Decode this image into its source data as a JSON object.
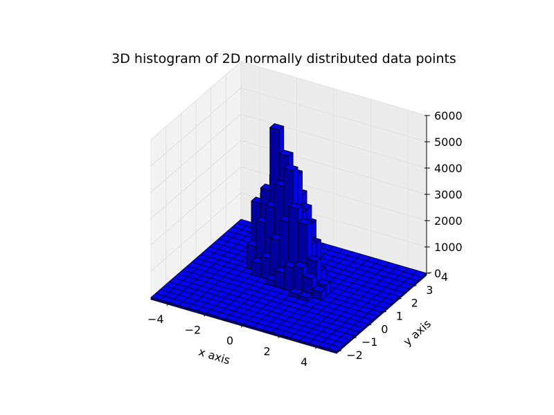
{
  "chart_data": {
    "type": "bar3d",
    "title": "3D histogram of 2D normally distributed data points",
    "xlabel": "x axis",
    "ylabel": "y axis",
    "zlabel": "",
    "xlim": [
      -5,
      5
    ],
    "ylim": [
      -2,
      4
    ],
    "zlim": [
      0,
      6000
    ],
    "x_ticks": [
      "−4",
      "−2",
      "0",
      "2",
      "4"
    ],
    "y_ticks": [
      "−2",
      "−1",
      "0",
      "1",
      "2",
      "3",
      "4"
    ],
    "z_ticks": [
      "0",
      "1000",
      "2000",
      "3000",
      "4000",
      "5000",
      "6000"
    ],
    "grid": true,
    "bar_color": "#0000ff",
    "x_edges": [
      -5,
      -4.5,
      -4,
      -3.5,
      -3,
      -2.5,
      -2,
      -1.5,
      -1,
      -0.5,
      0,
      0.5,
      1,
      1.5,
      2,
      2.5,
      3,
      3.5,
      4,
      4.5,
      5
    ],
    "y_edges": [
      -2,
      -1.7,
      -1.4,
      -1.1,
      -0.8,
      -0.5,
      -0.2,
      0.1,
      0.4,
      0.7,
      1,
      1.3,
      1.6,
      1.9,
      2.2,
      2.5,
      2.8,
      3.1,
      3.4,
      3.7,
      4
    ],
    "bars": [
      {
        "x": -2.5,
        "y": 2.2,
        "z": 2400
      },
      {
        "x": -2.0,
        "y": 2.2,
        "z": 3200
      },
      {
        "x": -1.5,
        "y": 2.2,
        "z": 3500
      },
      {
        "x": -1.0,
        "y": 2.2,
        "z": 3000
      },
      {
        "x": -0.5,
        "y": 2.2,
        "z": 1500
      },
      {
        "x": -2.5,
        "y": 1.9,
        "z": 1000
      },
      {
        "x": -2.0,
        "y": 1.9,
        "z": 2600
      },
      {
        "x": -1.5,
        "y": 1.9,
        "z": 3200
      },
      {
        "x": -1.0,
        "y": 1.9,
        "z": 3800
      },
      {
        "x": -0.5,
        "y": 1.9,
        "z": 3000
      },
      {
        "x": 0.0,
        "y": 1.9,
        "z": 2000
      },
      {
        "x": -2.5,
        "y": 1.6,
        "z": 2400
      },
      {
        "x": -2.0,
        "y": 1.6,
        "z": 3000
      },
      {
        "x": -1.5,
        "y": 1.6,
        "z": 5400
      },
      {
        "x": -1.0,
        "y": 1.6,
        "z": 4500
      },
      {
        "x": -0.5,
        "y": 1.6,
        "z": 3900
      },
      {
        "x": 0.0,
        "y": 1.6,
        "z": 2700
      },
      {
        "x": 0.5,
        "y": 1.6,
        "z": 1500
      },
      {
        "x": -2.5,
        "y": 1.3,
        "z": 900
      },
      {
        "x": -2.0,
        "y": 1.3,
        "z": 1900
      },
      {
        "x": -1.5,
        "y": 1.3,
        "z": 2600
      },
      {
        "x": -1.0,
        "y": 1.3,
        "z": 3500
      },
      {
        "x": -0.5,
        "y": 1.3,
        "z": 4200
      },
      {
        "x": 0.0,
        "y": 1.3,
        "z": 2700
      },
      {
        "x": 0.5,
        "y": 1.3,
        "z": 1600
      },
      {
        "x": 1.0,
        "y": 1.3,
        "z": 700
      },
      {
        "x": -2.0,
        "y": 1.0,
        "z": 500
      },
      {
        "x": -1.5,
        "y": 1.0,
        "z": 800
      },
      {
        "x": -1.0,
        "y": 1.0,
        "z": 1600
      },
      {
        "x": -0.5,
        "y": 1.0,
        "z": 2400
      },
      {
        "x": 0.0,
        "y": 1.0,
        "z": 3000
      },
      {
        "x": 0.5,
        "y": 1.0,
        "z": 2500
      },
      {
        "x": 1.0,
        "y": 1.0,
        "z": 1200
      },
      {
        "x": 1.5,
        "y": 1.0,
        "z": 400
      },
      {
        "x": -1.0,
        "y": 0.7,
        "z": 200
      },
      {
        "x": -0.5,
        "y": 0.7,
        "z": 600
      },
      {
        "x": 0.0,
        "y": 0.7,
        "z": 900
      },
      {
        "x": 0.5,
        "y": 0.7,
        "z": 1000
      },
      {
        "x": 1.0,
        "y": 0.7,
        "z": 700
      },
      {
        "x": 1.5,
        "y": 0.7,
        "z": 300
      },
      {
        "x": 0.5,
        "y": 0.4,
        "z": 150
      },
      {
        "x": 1.0,
        "y": 0.4,
        "z": 120
      }
    ]
  }
}
